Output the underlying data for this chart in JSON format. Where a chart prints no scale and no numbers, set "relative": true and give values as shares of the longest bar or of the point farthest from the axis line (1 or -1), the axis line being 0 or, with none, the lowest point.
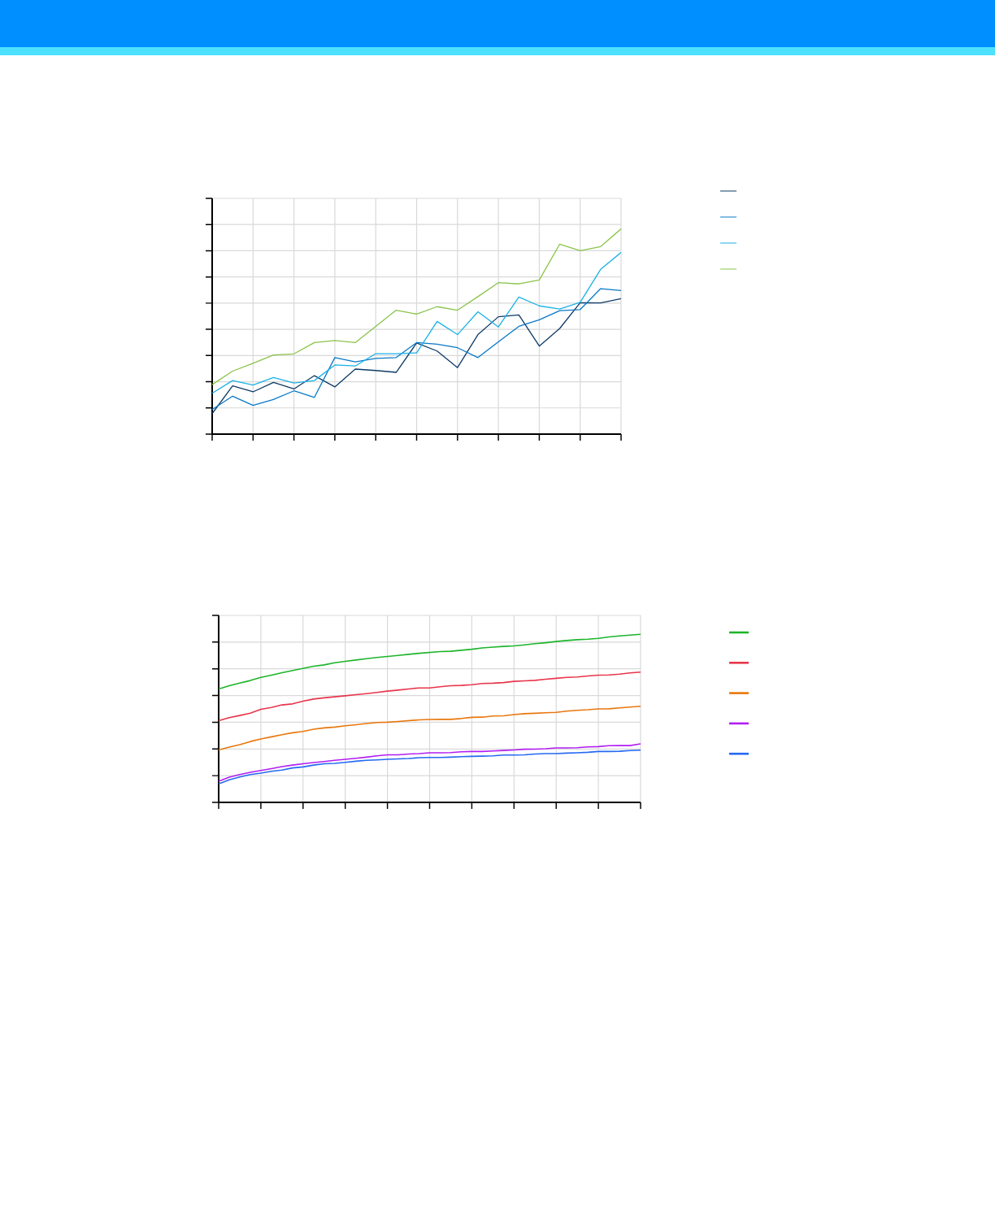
{
  "chart_data": [
    {
      "type": "line",
      "relative": true,
      "grid": true,
      "tick_labels": false,
      "categories": [
        null,
        null,
        null,
        null,
        null,
        null,
        null,
        null,
        null,
        null,
        null,
        null,
        null,
        null,
        null,
        null,
        null,
        null,
        null,
        null,
        null
      ],
      "series": [
        {
          "color": "#0d3b66",
          "values": [
            0.1,
            0.235,
            0.206,
            0.252,
            0.22,
            0.285,
            0.23,
            0.317,
            0.31,
            0.301,
            0.444,
            0.405,
            0.324,
            0.485,
            0.572,
            0.581,
            0.429,
            0.515,
            0.64,
            0.639,
            0.66
          ]
        },
        {
          "color": "#0878c8",
          "values": [
            0.12,
            0.185,
            0.14,
            0.169,
            0.211,
            0.179,
            0.373,
            0.352,
            0.369,
            0.373,
            0.446,
            0.438,
            0.421,
            0.373,
            0.45,
            0.525,
            0.557,
            0.602,
            0.607,
            0.709,
            0.7
          ]
        },
        {
          "color": "#1bb1e6",
          "values": [
            0.199,
            0.261,
            0.239,
            0.276,
            0.249,
            0.261,
            0.337,
            0.332,
            0.392,
            0.392,
            0.396,
            0.549,
            0.485,
            0.596,
            0.522,
            0.668,
            0.625,
            0.61,
            0.642,
            0.803,
            0.885
          ]
        },
        {
          "color": "#8bc34a",
          "values": [
            0.241,
            0.307,
            0.345,
            0.386,
            0.391,
            0.446,
            0.456,
            0.446,
            0.525,
            0.604,
            0.585,
            0.621,
            0.604,
            0.67,
            0.738,
            0.732,
            0.751,
            0.926,
            0.894,
            0.914,
            1
          ]
        }
      ]
    },
    {
      "type": "line",
      "relative": true,
      "grid": true,
      "tick_labels": false,
      "categories": [
        null,
        null,
        null,
        null,
        null,
        null,
        null,
        null,
        null,
        null,
        null,
        null,
        null,
        null,
        null,
        null,
        null,
        null,
        null,
        null,
        null,
        null,
        null,
        null,
        null,
        null,
        null,
        null,
        null,
        null,
        null,
        null,
        null,
        null,
        null,
        null,
        null,
        null,
        null,
        null,
        null
      ],
      "series": [
        {
          "color": "#1db52a",
          "values": [
            0.675,
            0.694,
            0.71,
            0.725,
            0.744,
            0.757,
            0.771,
            0.784,
            0.797,
            0.81,
            0.818,
            0.831,
            0.839,
            0.847,
            0.855,
            0.862,
            0.868,
            0.874,
            0.881,
            0.887,
            0.892,
            0.897,
            0.899,
            0.905,
            0.911,
            0.919,
            0.924,
            0.928,
            0.931,
            0.937,
            0.944,
            0.95,
            0.957,
            0.963,
            0.968,
            0.971,
            0.976,
            0.984,
            0.99,
            0.995,
            1
          ]
        },
        {
          "color": "#e8354b",
          "values": [
            0.486,
            0.504,
            0.517,
            0.531,
            0.554,
            0.565,
            0.58,
            0.586,
            0.602,
            0.615,
            0.622,
            0.628,
            0.634,
            0.641,
            0.647,
            0.654,
            0.662,
            0.668,
            0.675,
            0.681,
            0.681,
            0.688,
            0.694,
            0.696,
            0.7,
            0.707,
            0.709,
            0.713,
            0.72,
            0.723,
            0.726,
            0.733,
            0.738,
            0.744,
            0.746,
            0.752,
            0.757,
            0.758,
            0.763,
            0.77,
            0.775
          ]
        },
        {
          "color": "#e8770c",
          "values": [
            0.312,
            0.329,
            0.343,
            0.362,
            0.377,
            0.39,
            0.403,
            0.414,
            0.422,
            0.435,
            0.443,
            0.448,
            0.456,
            0.462,
            0.469,
            0.475,
            0.477,
            0.481,
            0.486,
            0.491,
            0.493,
            0.494,
            0.494,
            0.499,
            0.506,
            0.507,
            0.514,
            0.515,
            0.522,
            0.528,
            0.53,
            0.533,
            0.536,
            0.543,
            0.548,
            0.551,
            0.556,
            0.557,
            0.562,
            0.567,
            0.572
          ]
        },
        {
          "color": "#b11ef2",
          "values": [
            0.126,
            0.15,
            0.166,
            0.179,
            0.19,
            0.201,
            0.213,
            0.222,
            0.23,
            0.237,
            0.243,
            0.25,
            0.256,
            0.262,
            0.269,
            0.277,
            0.283,
            0.283,
            0.288,
            0.29,
            0.295,
            0.295,
            0.296,
            0.301,
            0.303,
            0.303,
            0.306,
            0.309,
            0.312,
            0.316,
            0.317,
            0.319,
            0.324,
            0.324,
            0.325,
            0.33,
            0.332,
            0.337,
            0.338,
            0.338,
            0.348
          ]
        },
        {
          "color": "#2469f2",
          "values": [
            0.11,
            0.134,
            0.151,
            0.166,
            0.174,
            0.185,
            0.192,
            0.205,
            0.211,
            0.222,
            0.23,
            0.232,
            0.238,
            0.245,
            0.25,
            0.253,
            0.256,
            0.259,
            0.261,
            0.266,
            0.267,
            0.267,
            0.269,
            0.272,
            0.274,
            0.275,
            0.277,
            0.282,
            0.282,
            0.283,
            0.288,
            0.29,
            0.29,
            0.293,
            0.295,
            0.298,
            0.303,
            0.303,
            0.304,
            0.308,
            0.311
          ]
        }
      ]
    }
  ]
}
